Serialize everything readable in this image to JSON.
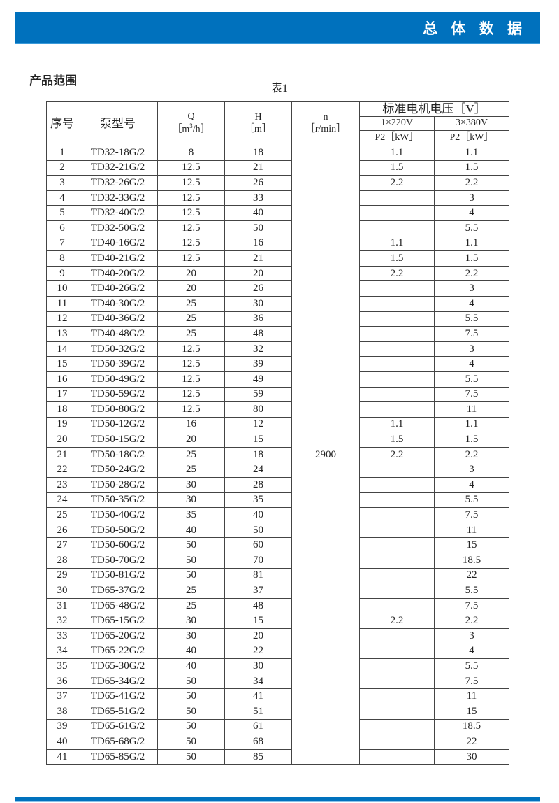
{
  "banner": {
    "title": "总 体 数 据"
  },
  "section_title": "产品范围",
  "table_caption": "表1",
  "headers": {
    "no": "序号",
    "model": "泵型号",
    "q": "Q",
    "q_unit_pre": "［m",
    "q_unit_sup": "3",
    "q_unit_post": "/h］",
    "h": "H",
    "h_unit": "［m］",
    "n": "n",
    "n_unit": "［r/min］",
    "voltage": "标准电机电压［V］",
    "v1": "1×220V",
    "v3": "3×380V",
    "p1": "P2［kW］",
    "p3": "P2［kW］"
  },
  "speed": "2900",
  "rows": [
    [
      "1",
      "TD32-18G/2",
      "8",
      "18",
      "1.1",
      "1.1"
    ],
    [
      "2",
      "TD32-21G/2",
      "12.5",
      "21",
      "1.5",
      "1.5"
    ],
    [
      "3",
      "TD32-26G/2",
      "12.5",
      "26",
      "2.2",
      "2.2"
    ],
    [
      "4",
      "TD32-33G/2",
      "12.5",
      "33",
      "",
      "3"
    ],
    [
      "5",
      "TD32-40G/2",
      "12.5",
      "40",
      "",
      "4"
    ],
    [
      "6",
      "TD32-50G/2",
      "12.5",
      "50",
      "",
      "5.5"
    ],
    [
      "7",
      "TD40-16G/2",
      "12.5",
      "16",
      "1.1",
      "1.1"
    ],
    [
      "8",
      "TD40-21G/2",
      "12.5",
      "21",
      "1.5",
      "1.5"
    ],
    [
      "9",
      "TD40-20G/2",
      "20",
      "20",
      "2.2",
      "2.2"
    ],
    [
      "10",
      "TD40-26G/2",
      "20",
      "26",
      "",
      "3"
    ],
    [
      "11",
      "TD40-30G/2",
      "25",
      "30",
      "",
      "4"
    ],
    [
      "12",
      "TD40-36G/2",
      "25",
      "36",
      "",
      "5.5"
    ],
    [
      "13",
      "TD40-48G/2",
      "25",
      "48",
      "",
      "7.5"
    ],
    [
      "14",
      "TD50-32G/2",
      "12.5",
      "32",
      "",
      "3"
    ],
    [
      "15",
      "TD50-39G/2",
      "12.5",
      "39",
      "",
      "4"
    ],
    [
      "16",
      "TD50-49G/2",
      "12.5",
      "49",
      "",
      "5.5"
    ],
    [
      "17",
      "TD50-59G/2",
      "12.5",
      "59",
      "",
      "7.5"
    ],
    [
      "18",
      "TD50-80G/2",
      "12.5",
      "80",
      "",
      "11"
    ],
    [
      "19",
      "TD50-12G/2",
      "16",
      "12",
      "1.1",
      "1.1"
    ],
    [
      "20",
      "TD50-15G/2",
      "20",
      "15",
      "1.5",
      "1.5"
    ],
    [
      "21",
      "TD50-18G/2",
      "25",
      "18",
      "2.2",
      "2.2"
    ],
    [
      "22",
      "TD50-24G/2",
      "25",
      "24",
      "",
      "3"
    ],
    [
      "23",
      "TD50-28G/2",
      "30",
      "28",
      "",
      "4"
    ],
    [
      "24",
      "TD50-35G/2",
      "30",
      "35",
      "",
      "5.5"
    ],
    [
      "25",
      "TD50-40G/2",
      "35",
      "40",
      "",
      "7.5"
    ],
    [
      "26",
      "TD50-50G/2",
      "40",
      "50",
      "",
      "11"
    ],
    [
      "27",
      "TD50-60G/2",
      "50",
      "60",
      "",
      "15"
    ],
    [
      "28",
      "TD50-70G/2",
      "50",
      "70",
      "",
      "18.5"
    ],
    [
      "29",
      "TD50-81G/2",
      "50",
      "81",
      "",
      "22"
    ],
    [
      "30",
      "TD65-37G/2",
      "25",
      "37",
      "",
      "5.5"
    ],
    [
      "31",
      "TD65-48G/2",
      "25",
      "48",
      "",
      "7.5"
    ],
    [
      "32",
      "TD65-15G/2",
      "30",
      "15",
      "2.2",
      "2.2"
    ],
    [
      "33",
      "TD65-20G/2",
      "30",
      "20",
      "",
      "3"
    ],
    [
      "34",
      "TD65-22G/2",
      "40",
      "22",
      "",
      "4"
    ],
    [
      "35",
      "TD65-30G/2",
      "40",
      "30",
      "",
      "5.5"
    ],
    [
      "36",
      "TD65-34G/2",
      "50",
      "34",
      "",
      "7.5"
    ],
    [
      "37",
      "TD65-41G/2",
      "50",
      "41",
      "",
      "11"
    ],
    [
      "38",
      "TD65-51G/2",
      "50",
      "51",
      "",
      "15"
    ],
    [
      "39",
      "TD65-61G/2",
      "50",
      "61",
      "",
      "18.5"
    ],
    [
      "40",
      "TD65-68G/2",
      "50",
      "68",
      "",
      "22"
    ],
    [
      "41",
      "TD65-85G/2",
      "50",
      "85",
      "",
      "30"
    ]
  ]
}
